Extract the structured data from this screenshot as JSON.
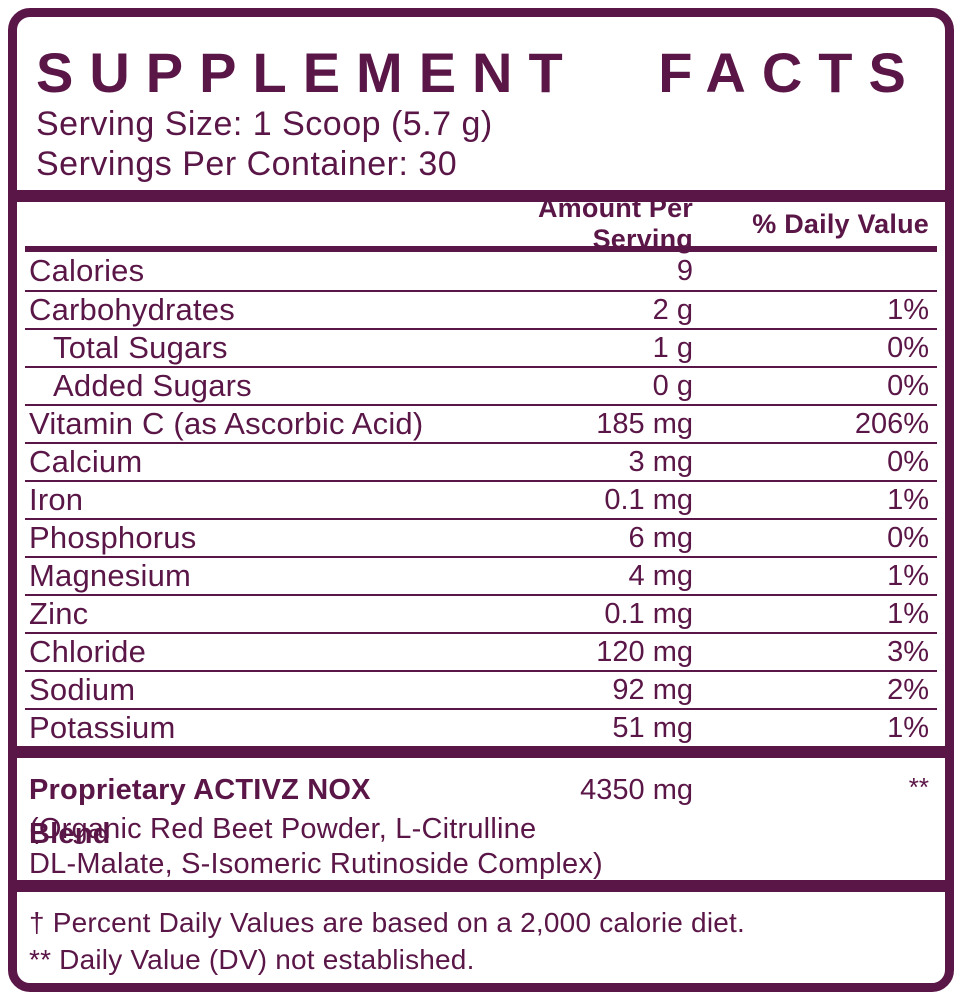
{
  "colors": {
    "brand": "#5a1647",
    "background": "#ffffff"
  },
  "title": "SUPPLEMENT FACTS",
  "serving": {
    "serving_size": "Serving Size: 1 Scoop (5.7 g)",
    "servings_per_container": "Servings Per Container: 30"
  },
  "table": {
    "headers": {
      "amount": "Amount Per Serving",
      "daily_value": "% Daily Value"
    },
    "rows": [
      {
        "label": "Calories",
        "amount": "9",
        "dv": "",
        "indent": false
      },
      {
        "label": "Carbohydrates",
        "amount": "2 g",
        "dv": "1%",
        "indent": false
      },
      {
        "label": "Total Sugars",
        "amount": "1 g",
        "dv": "0%",
        "indent": true
      },
      {
        "label": "Added Sugars",
        "amount": "0 g",
        "dv": "0%",
        "indent": true
      },
      {
        "label": "Vitamin C (as Ascorbic Acid)",
        "amount": "185 mg",
        "dv": "206%",
        "indent": false
      },
      {
        "label": "Calcium",
        "amount": "3 mg",
        "dv": "0%",
        "indent": false
      },
      {
        "label": "Iron",
        "amount": "0.1 mg",
        "dv": "1%",
        "indent": false
      },
      {
        "label": "Phosphorus",
        "amount": "6 mg",
        "dv": "0%",
        "indent": false
      },
      {
        "label": "Magnesium",
        "amount": "4 mg",
        "dv": "1%",
        "indent": false
      },
      {
        "label": "Zinc",
        "amount": "0.1 mg",
        "dv": "1%",
        "indent": false
      },
      {
        "label": "Chloride",
        "amount": "120 mg",
        "dv": "3%",
        "indent": false
      },
      {
        "label": "Sodium",
        "amount": "92 mg",
        "dv": "2%",
        "indent": false
      },
      {
        "label": "Potassium",
        "amount": "51 mg",
        "dv": "1%",
        "indent": false
      }
    ]
  },
  "blend": {
    "name": "Proprietary ACTIVZ NOX Blend",
    "amount": "4350 mg",
    "dv": "**",
    "description_line1": "(Organic Red Beet Powder, L-Citrulline",
    "description_line2": "DL-Malate, S-Isomeric Rutinoside Complex)"
  },
  "footnotes": {
    "line1": "† Percent Daily Values are based on a 2,000 calorie diet.",
    "line2": "** Daily Value (DV) not established."
  }
}
